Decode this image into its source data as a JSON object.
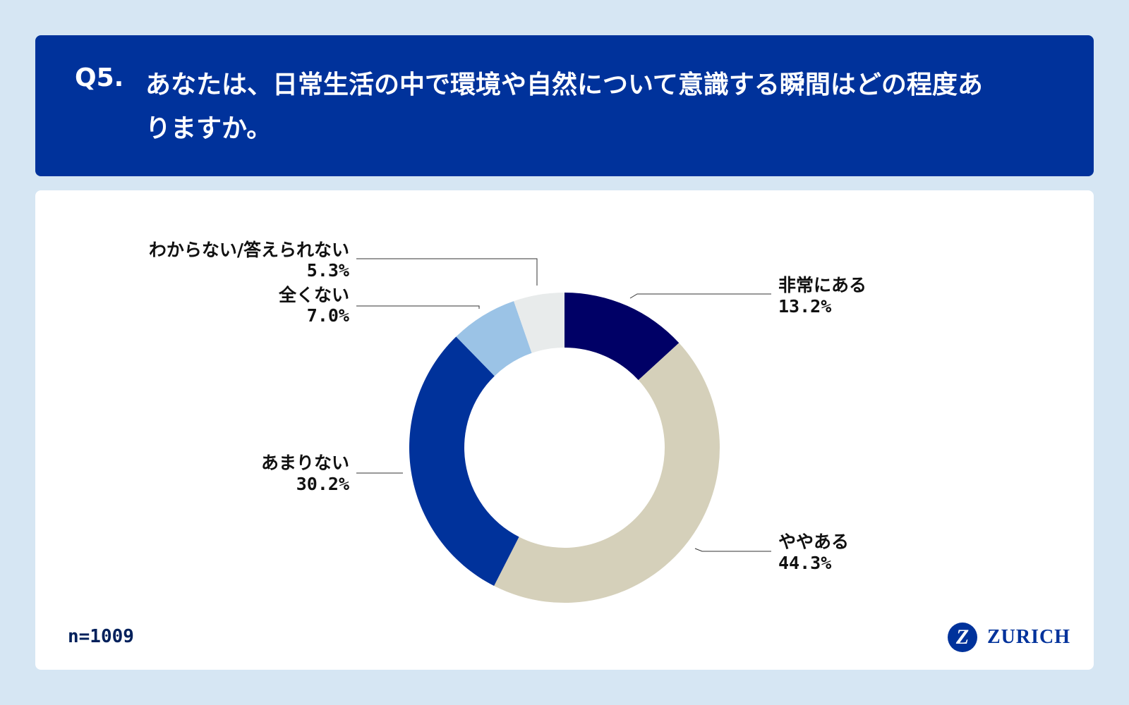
{
  "header": {
    "question_no": "Q5.",
    "question_text": "あなたは、日常生活の中で環境や自然について意識する瞬間はどの程度ありますか。"
  },
  "sample": "n=1009",
  "logo": {
    "mark": "Z",
    "text": "ZURICH"
  },
  "colors": {
    "header_bg": "#00329b",
    "page_bg": "#d6e6f3",
    "slices": [
      "#000066",
      "#d5d0ba",
      "#00329b",
      "#9bc3e6",
      "#e8ebeb"
    ]
  },
  "chart_data": {
    "type": "pie",
    "variant": "donut",
    "start": "12 o'clock",
    "direction": "clockwise",
    "slices": [
      {
        "label": "非常にある",
        "value": 13.2,
        "display": "13.2%"
      },
      {
        "label": "ややある",
        "value": 44.3,
        "display": "44.3%"
      },
      {
        "label": "あまりない",
        "value": 30.2,
        "display": "30.2%"
      },
      {
        "label": "全くない",
        "value": 7.0,
        "display": "7.0%"
      },
      {
        "label": "わからない/答えられない",
        "value": 5.3,
        "display": "5.3%"
      }
    ]
  }
}
